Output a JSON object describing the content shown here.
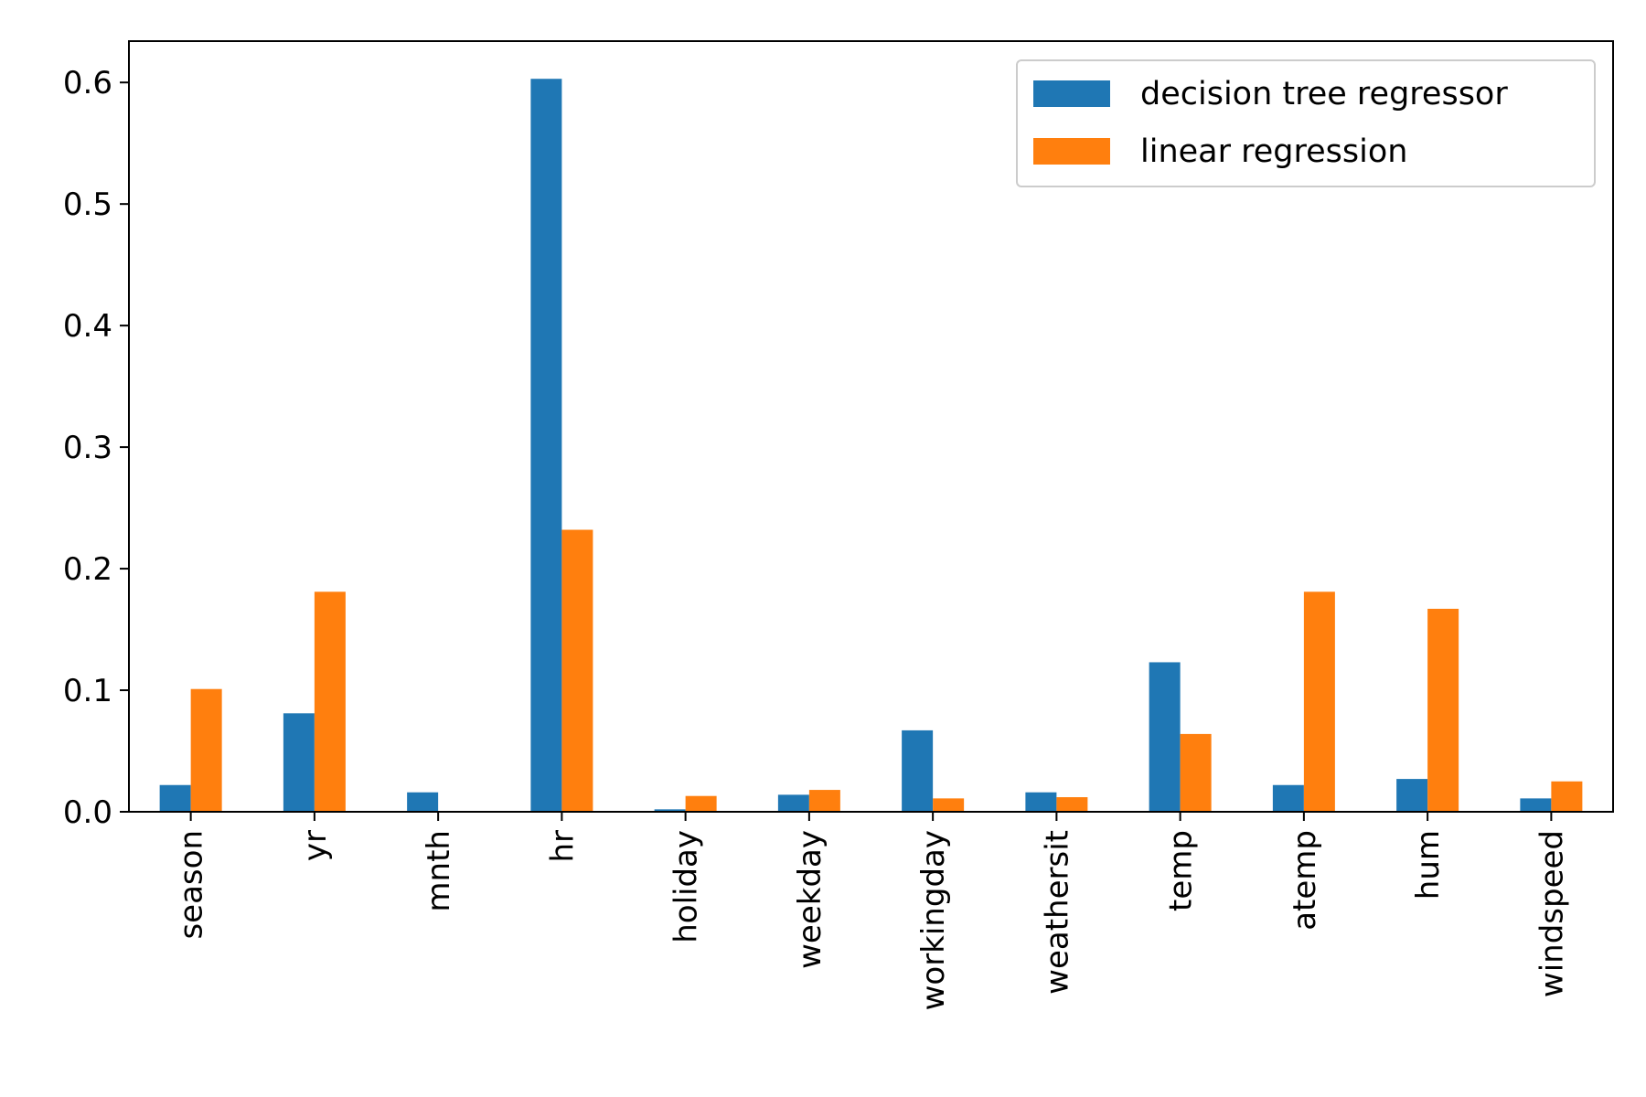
{
  "chart_data": {
    "type": "bar",
    "title": "",
    "xlabel": "",
    "ylabel": "",
    "categories": [
      "season",
      "yr",
      "mnth",
      "hr",
      "holiday",
      "weekday",
      "workingday",
      "weathersit",
      "temp",
      "atemp",
      "hum",
      "windspeed"
    ],
    "series": [
      {
        "name": "decision tree regressor",
        "color": "#1f77b4",
        "values": [
          0.022,
          0.081,
          0.016,
          0.603,
          0.002,
          0.014,
          0.067,
          0.016,
          0.123,
          0.022,
          0.027,
          0.011
        ]
      },
      {
        "name": "linear regression",
        "color": "#ff7f0e",
        "values": [
          0.101,
          0.181,
          0.0,
          0.232,
          0.013,
          0.018,
          0.011,
          0.012,
          0.064,
          0.181,
          0.167,
          0.025
        ]
      }
    ],
    "ylim": [
      0,
      0.634
    ],
    "yticks": [
      0.0,
      0.1,
      0.2,
      0.3,
      0.4,
      0.5,
      0.6
    ],
    "ytick_labels": [
      "0.0",
      "0.1",
      "0.2",
      "0.3",
      "0.4",
      "0.5",
      "0.6"
    ],
    "grid": false,
    "legend_position": "top-right"
  }
}
